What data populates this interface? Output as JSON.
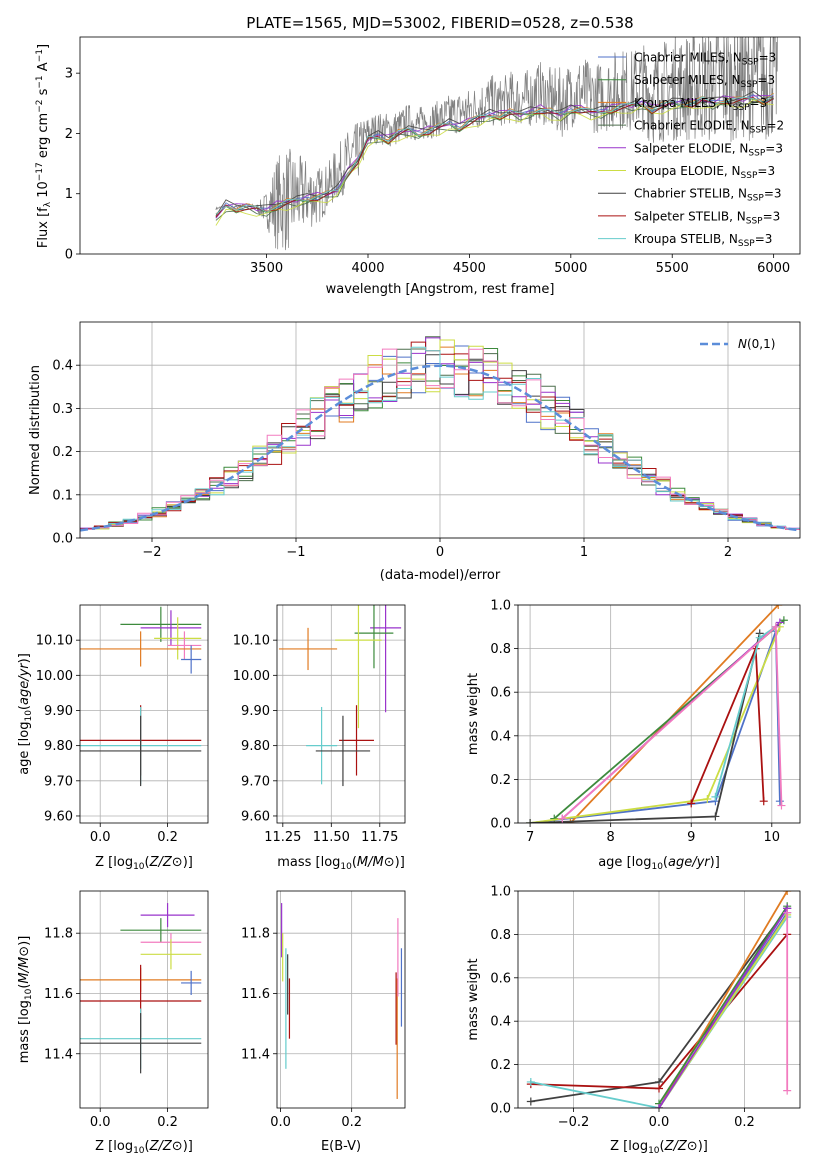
{
  "chart_data": [
    {
      "id": "spectrum",
      "type": "line",
      "title": "PLATE=1565, MJD=53002, FIBERID=0528, z=0.538",
      "xlabel": "wavelength [Angstrom, rest frame]",
      "ylabel": "Flux [f$_\\lambda$ 10$^{-17}$ erg cm$^{-2}$ s$^{-1}$ A$^{-1}$]",
      "ylabel_parts": {
        "a": "Flux [f",
        "b": "λ",
        "c": "10",
        "d": "−17",
        "e": " erg cm",
        "f": "−2",
        "g": " s",
        "h": "−1",
        "i": " A",
        "j": "−1",
        "k": "]"
      },
      "xlim": [
        2580,
        6130
      ],
      "ylim": [
        0,
        3.6
      ],
      "xticks": [
        3500,
        4000,
        4500,
        5000,
        5500,
        6000
      ],
      "yticks": [
        0,
        1,
        2,
        3
      ],
      "grid": false,
      "legend": {
        "position": "top-right"
      },
      "observed": {
        "name": "data",
        "color": "#808080",
        "x": [
          3250,
          3300,
          3350,
          3400,
          3450,
          3500,
          3550,
          3600,
          3650,
          3700,
          3750,
          3800,
          3850,
          3900,
          3950,
          4000,
          4050,
          4100,
          4150,
          4200,
          4250,
          4300,
          4350,
          4400,
          4450,
          4500,
          4550,
          4600,
          4650,
          4700,
          4750,
          4800,
          4850,
          4900,
          4950,
          5000,
          5050,
          5100,
          5150,
          5200,
          5250,
          5300,
          5350,
          5400,
          5450,
          5500,
          5550,
          5600,
          5650,
          5700,
          5750,
          5800,
          5850,
          5900,
          5950,
          6000
        ],
        "y": [
          0.75,
          0.8,
          0.78,
          0.82,
          0.76,
          0.75,
          0.85,
          0.9,
          0.95,
          1.0,
          0.95,
          1.1,
          1.35,
          1.55,
          1.7,
          2.0,
          2.1,
          2.05,
          2.1,
          2.2,
          2.15,
          2.2,
          2.25,
          2.3,
          2.35,
          2.4,
          2.45,
          2.55,
          2.5,
          2.6,
          2.55,
          2.6,
          2.7,
          2.55,
          2.5,
          2.65,
          2.7,
          2.6,
          2.6,
          2.7,
          2.75,
          2.7,
          2.8,
          2.6,
          2.7,
          2.75,
          2.8,
          2.75,
          2.85,
          2.8,
          2.9,
          2.85,
          2.9,
          2.95,
          2.9,
          3.0
        ],
        "noise": [
          0.02,
          0.02,
          0.02,
          0.03,
          0.05,
          0.3,
          0.8,
          0.9,
          0.7,
          0.6,
          0.5,
          0.4,
          0.45,
          0.5,
          0.5,
          0.3,
          0.25,
          0.3,
          0.3,
          0.3,
          0.3,
          0.3,
          0.3,
          0.35,
          0.35,
          0.35,
          0.4,
          0.45,
          0.4,
          0.45,
          0.45,
          0.5,
          0.5,
          0.55,
          0.6,
          0.55,
          0.6,
          0.6,
          0.6,
          0.65,
          0.7,
          0.7,
          0.75,
          0.8,
          0.85,
          0.9,
          0.9,
          0.95,
          1.0,
          1.0,
          1.0,
          1.0,
          1.05,
          1.05,
          1.1,
          1.1
        ]
      },
      "series": [
        {
          "name": "Chabrier MILES",
          "sub": "SSP",
          "n": 3,
          "color": "#4f72c8",
          "offset": 0.0
        },
        {
          "name": "Salpeter MILES",
          "sub": "SSP",
          "n": 3,
          "color": "#3d8a3d",
          "offset": -0.03
        },
        {
          "name": "Kroupa MILES",
          "sub": "SSP",
          "n": 3,
          "color": "#e07b22",
          "offset": 0.02
        },
        {
          "name": "Chabrier ELODIE",
          "sub": "SSP",
          "n": 2,
          "color": "#4d6e4d",
          "offset": -0.05
        },
        {
          "name": "Salpeter ELODIE",
          "sub": "SSP",
          "n": 3,
          "color": "#9933cc",
          "offset": 0.03
        },
        {
          "name": "Kroupa ELODIE",
          "sub": "SSP",
          "n": 3,
          "color": "#ccdd44",
          "offset": -0.08
        },
        {
          "name": "Chabrier STELIB",
          "sub": "SSP",
          "n": 3,
          "color": "#404040",
          "offset": 0.05
        },
        {
          "name": "Salpeter STELIB",
          "sub": "SSP",
          "n": 3,
          "color": "#aa1111",
          "offset": -0.02
        },
        {
          "name": "Kroupa STELIB",
          "sub": "SSP",
          "n": 3,
          "color": "#66cccc",
          "offset": 0.01
        }
      ],
      "model_x": [
        3250,
        3300,
        3350,
        3400,
        3450,
        3500,
        3550,
        3600,
        3650,
        3700,
        3750,
        3800,
        3850,
        3900,
        3950,
        4000,
        4050,
        4100,
        4150,
        4200,
        4250,
        4300,
        4350,
        4400,
        4450,
        4500,
        4550,
        4600,
        4650,
        4700,
        4750,
        4800,
        4850,
        4900,
        4950,
        5000,
        5050,
        5100,
        5150,
        5200,
        5250,
        5300,
        5350,
        5400,
        5450,
        5500,
        5550,
        5600,
        5650,
        5700,
        5750,
        5800,
        5850,
        5900,
        5950,
        6000
      ],
      "model_y": [
        0.6,
        0.8,
        0.76,
        0.78,
        0.74,
        0.72,
        0.8,
        0.85,
        0.88,
        0.92,
        0.95,
        0.98,
        1.05,
        1.35,
        1.55,
        1.9,
        1.95,
        1.9,
        2.0,
        2.05,
        2.0,
        2.05,
        2.1,
        2.15,
        2.1,
        2.2,
        2.25,
        2.3,
        2.3,
        2.35,
        2.3,
        2.35,
        2.4,
        2.35,
        2.3,
        2.4,
        2.4,
        2.35,
        2.35,
        2.4,
        2.45,
        2.45,
        2.5,
        2.4,
        2.45,
        2.5,
        2.5,
        2.5,
        2.55,
        2.5,
        2.55,
        2.55,
        2.55,
        2.6,
        2.55,
        2.6
      ]
    },
    {
      "id": "residuals",
      "type": "line",
      "xlabel": "(data-model)/error",
      "ylabel": "Normed distribution",
      "xlim": [
        -2.5,
        2.5
      ],
      "ylim": [
        0,
        0.5
      ],
      "xticks": [
        -2,
        -1,
        0,
        1,
        2
      ],
      "yticks": [
        0.0,
        0.1,
        0.2,
        0.3,
        0.4
      ],
      "grid": true,
      "legend": {
        "position": "top-right",
        "label": "N(0,1)"
      },
      "gaussian": {
        "name": "N(0,1)",
        "color": "#5b8dd9",
        "mean": 0,
        "sigma": 1
      },
      "bin_width": 0.1
    },
    {
      "id": "age-vs-Z",
      "type": "scatter",
      "xlabel": "Z [log10(Z/Z⊙)]",
      "ylabel": "age  [log10(age/yr)]",
      "xlim": [
        -0.06,
        0.32
      ],
      "ylim": [
        9.58,
        10.2
      ],
      "xticks": [
        0.0,
        0.2
      ],
      "xticklabels": [
        "0.0",
        "0.2"
      ],
      "yticks": [
        9.6,
        9.7,
        9.8,
        9.9,
        10.0,
        10.1
      ],
      "grid": true,
      "points": [
        {
          "x": 0.18,
          "y": 10.145,
          "xerr": 0.12,
          "yerr": 0.05,
          "color": "#3d8a3d"
        },
        {
          "x": 0.21,
          "y": 10.135,
          "xerr": 0.09,
          "yerr": 0.05,
          "color": "#9933cc"
        },
        {
          "x": 0.23,
          "y": 10.105,
          "xerr": 0.07,
          "yerr": 0.06,
          "color": "#ccdd44"
        },
        {
          "x": 0.25,
          "y": 10.085,
          "xerr": 0.05,
          "yerr": 0.04,
          "color": "#f27bbf"
        },
        {
          "x": 0.12,
          "y": 10.075,
          "xerr": 0.18,
          "yerr": 0.05,
          "color": "#e07b22"
        },
        {
          "x": 0.27,
          "y": 10.045,
          "xerr": 0.03,
          "yerr": 0.04,
          "color": "#4f72c8"
        },
        {
          "x": 0.12,
          "y": 9.815,
          "xerr": 0.18,
          "yerr": 0.1,
          "color": "#aa1111"
        },
        {
          "x": 0.12,
          "y": 9.8,
          "xerr": 0.18,
          "yerr": 0.11,
          "color": "#66cccc"
        },
        {
          "x": 0.12,
          "y": 9.785,
          "xerr": 0.18,
          "yerr": 0.1,
          "color": "#404040"
        }
      ]
    },
    {
      "id": "age-vs-mass",
      "type": "scatter",
      "xlabel": "mass [log10(M/M⊙)]",
      "ylabel": "",
      "xlim": [
        11.22,
        11.88
      ],
      "ylim": [
        9.58,
        10.2
      ],
      "xticks": [
        11.25,
        11.5,
        11.75
      ],
      "xticklabels": [
        "11.25",
        "11.50",
        "11.75"
      ],
      "yticks": [
        9.6,
        9.7,
        9.8,
        9.9,
        10.0,
        10.1
      ],
      "grid": true,
      "points": [
        {
          "x": 11.78,
          "y": 10.135,
          "xerr": 0.08,
          "yerr": 0.24,
          "color": "#9933cc"
        },
        {
          "x": 11.72,
          "y": 10.12,
          "xerr": 0.1,
          "yerr": 0.1,
          "color": "#3d8a3d"
        },
        {
          "x": 11.64,
          "y": 10.1,
          "xerr": 0.12,
          "yerr": 0.25,
          "color": "#ccdd44"
        },
        {
          "x": 11.38,
          "y": 10.075,
          "xerr": 0.15,
          "yerr": 0.06,
          "color": "#e07b22"
        },
        {
          "x": 11.63,
          "y": 9.815,
          "xerr": 0.09,
          "yerr": 0.1,
          "color": "#aa1111"
        },
        {
          "x": 11.45,
          "y": 9.8,
          "xerr": 0.08,
          "yerr": 0.11,
          "color": "#66cccc"
        },
        {
          "x": 11.56,
          "y": 9.785,
          "xerr": 0.14,
          "yerr": 0.1,
          "color": "#404040"
        }
      ]
    },
    {
      "id": "massweight-vs-age",
      "type": "line",
      "xlabel": "age  [log10(age/yr)]",
      "ylabel": "mass weight",
      "xlim": [
        6.85,
        10.35
      ],
      "ylim": [
        0,
        1.0
      ],
      "xticks": [
        7,
        8,
        9,
        10
      ],
      "yticks": [
        0.0,
        0.2,
        0.4,
        0.6,
        0.8,
        1.0
      ],
      "grid": true,
      "series": [
        {
          "color": "#4f72c8",
          "x": [
            7.0,
            9.3,
            10.05,
            10.1
          ],
          "y": [
            0.0,
            0.1,
            0.88,
            0.1
          ]
        },
        {
          "color": "#e07b22",
          "x": [
            7.5,
            10.08
          ],
          "y": [
            0.0,
            1.0
          ]
        },
        {
          "color": "#3d8a3d",
          "x": [
            7.3,
            10.15
          ],
          "y": [
            0.02,
            0.93
          ]
        },
        {
          "color": "#9933cc",
          "x": [
            7.4,
            10.1
          ],
          "y": [
            0.02,
            0.92
          ]
        },
        {
          "color": "#ccdd44",
          "x": [
            7.0,
            9.2,
            10.1
          ],
          "y": [
            0.0,
            0.11,
            0.9
          ]
        },
        {
          "color": "#404040",
          "x": [
            7.0,
            9.3,
            9.85
          ],
          "y": [
            0.0,
            0.03,
            0.87
          ]
        },
        {
          "color": "#aa1111",
          "x": [
            9.0,
            9.8,
            9.9
          ],
          "y": [
            0.09,
            0.8,
            0.1
          ]
        },
        {
          "color": "#66cccc",
          "x": [
            9.3,
            9.85,
            10.05
          ],
          "y": [
            0.12,
            0.85,
            0.9
          ]
        },
        {
          "color": "#f27bbf",
          "x": [
            7.4,
            10.05,
            10.12
          ],
          "y": [
            0.02,
            0.9,
            0.08
          ]
        }
      ]
    },
    {
      "id": "mass-vs-Z",
      "type": "scatter",
      "xlabel": "Z [log10(Z/Z⊙)]",
      "ylabel": "mass [log10(M/M⊙)]",
      "xlim": [
        -0.06,
        0.32
      ],
      "ylim": [
        11.22,
        11.94
      ],
      "xticks": [
        0.0,
        0.2
      ],
      "xticklabels": [
        "0.0",
        "0.2"
      ],
      "yticks": [
        11.4,
        11.6,
        11.8
      ],
      "grid": true,
      "points": [
        {
          "x": 0.2,
          "y": 11.86,
          "xerr": 0.08,
          "yerr": 0.04,
          "color": "#9933cc"
        },
        {
          "x": 0.18,
          "y": 11.81,
          "xerr": 0.12,
          "yerr": 0.04,
          "color": "#3d8a3d"
        },
        {
          "x": 0.21,
          "y": 11.77,
          "xerr": 0.09,
          "yerr": 0.03,
          "color": "#f27bbf"
        },
        {
          "x": 0.21,
          "y": 11.73,
          "xerr": 0.09,
          "yerr": 0.05,
          "color": "#ccdd44"
        },
        {
          "x": 0.12,
          "y": 11.645,
          "xerr": 0.18,
          "yerr": 0.04,
          "color": "#e07b22"
        },
        {
          "x": 0.27,
          "y": 11.635,
          "xerr": 0.03,
          "yerr": 0.04,
          "color": "#4f72c8"
        },
        {
          "x": 0.12,
          "y": 11.575,
          "xerr": 0.18,
          "yerr": 0.12,
          "color": "#aa1111"
        },
        {
          "x": 0.12,
          "y": 11.45,
          "xerr": 0.18,
          "yerr": 0.1,
          "color": "#66cccc"
        },
        {
          "x": 0.12,
          "y": 11.435,
          "xerr": 0.18,
          "yerr": 0.1,
          "color": "#404040"
        }
      ]
    },
    {
      "id": "mass-vs-EBV",
      "type": "scatter",
      "xlabel": "E(B-V)",
      "ylabel": "",
      "xlim": [
        -0.01,
        0.35
      ],
      "ylim": [
        11.22,
        11.94
      ],
      "xticks": [
        0.0,
        0.2
      ],
      "xticklabels": [
        "0.0",
        "0.2"
      ],
      "yticks": [
        11.4,
        11.6,
        11.8
      ],
      "grid": true,
      "points": [
        {
          "x": 0.003,
          "y": 11.81,
          "xerr": 0,
          "yerr": 0.09,
          "color": "#9933cc"
        },
        {
          "x": 0.006,
          "y": 11.72,
          "xerr": 0,
          "yerr": 0.08,
          "color": "#ccdd44"
        },
        {
          "x": 0.015,
          "y": 11.55,
          "xerr": 0,
          "yerr": 0.2,
          "color": "#66cccc"
        },
        {
          "x": 0.02,
          "y": 11.63,
          "xerr": 0,
          "yerr": 0.1,
          "color": "#404040"
        },
        {
          "x": 0.025,
          "y": 11.55,
          "xerr": 0,
          "yerr": 0.1,
          "color": "#aa1111"
        },
        {
          "x": 0.325,
          "y": 11.55,
          "xerr": 0,
          "yerr": 0.12,
          "color": "#aa1111"
        },
        {
          "x": 0.328,
          "y": 11.45,
          "xerr": 0,
          "yerr": 0.2,
          "color": "#e07b22"
        },
        {
          "x": 0.33,
          "y": 11.72,
          "xerr": 0,
          "yerr": 0.13,
          "color": "#f27bbf"
        },
        {
          "x": 0.34,
          "y": 11.62,
          "xerr": 0,
          "yerr": 0.13,
          "color": "#4f72c8"
        }
      ]
    },
    {
      "id": "massweight-vs-Z",
      "type": "line",
      "xlabel": "Z [log10(Z/Z⊙)]",
      "ylabel": "mass weight",
      "xlim": [
        -0.33,
        0.33
      ],
      "ylim": [
        0,
        1.0
      ],
      "xticks": [
        -0.2,
        0.0,
        0.2
      ],
      "xticklabels": [
        "−0.2",
        "0.0",
        "0.2"
      ],
      "yticks": [
        0.0,
        0.2,
        0.4,
        0.6,
        0.8,
        1.0
      ],
      "grid": true,
      "series": [
        {
          "color": "#404040",
          "x": [
            -0.3,
            0.0,
            0.3
          ],
          "y": [
            0.03,
            0.12,
            0.92
          ]
        },
        {
          "color": "#aa1111",
          "x": [
            -0.3,
            0.0,
            0.3
          ],
          "y": [
            0.11,
            0.09,
            0.8
          ]
        },
        {
          "color": "#66cccc",
          "x": [
            -0.3,
            0.0,
            0.3
          ],
          "y": [
            0.12,
            0.0,
            0.88
          ]
        },
        {
          "color": "#e07b22",
          "x": [
            0.0,
            0.3
          ],
          "y": [
            0.0,
            1.0
          ]
        },
        {
          "color": "#3d8a3d",
          "x": [
            0.0,
            0.3
          ],
          "y": [
            0.02,
            0.93
          ]
        },
        {
          "color": "#4f72c8",
          "x": [
            0.0,
            0.3
          ],
          "y": [
            0.0,
            0.9
          ]
        },
        {
          "color": "#ccdd44",
          "x": [
            0.0,
            0.3
          ],
          "y": [
            0.0,
            0.89
          ]
        },
        {
          "color": "#9933cc",
          "x": [
            0.0,
            0.3
          ],
          "y": [
            0.0,
            0.92
          ]
        },
        {
          "color": "#f27bbf",
          "x": [
            0.3,
            0.3
          ],
          "y": [
            0.08,
            0.9
          ]
        }
      ]
    }
  ]
}
